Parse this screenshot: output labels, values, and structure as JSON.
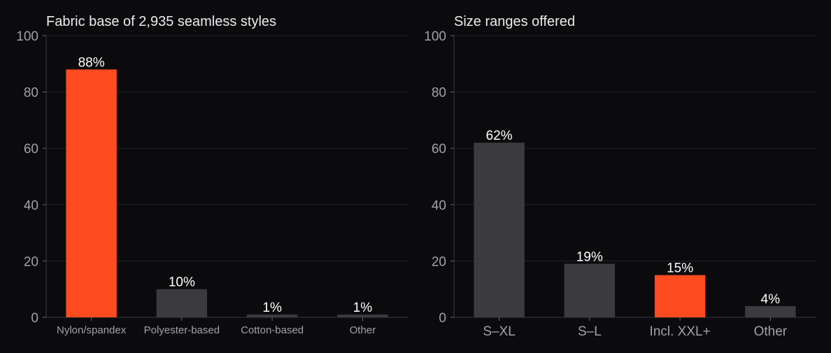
{
  "colors": {
    "background": "#0b0b0d",
    "highlight": "#ff4b1f",
    "muted": "#3b3b3e"
  },
  "chart_data": [
    {
      "type": "bar",
      "title": "Fabric base of 2,935 seamless styles",
      "xlabel": "",
      "ylabel": "",
      "ylim": [
        0,
        100
      ],
      "yticks": [
        0,
        20,
        40,
        60,
        80,
        100
      ],
      "categories": [
        "Nylon/spandex",
        "Polyester-based",
        "Cotton-based",
        "Other"
      ],
      "values": [
        88,
        10,
        1,
        1
      ],
      "data_labels": [
        "88%",
        "10%",
        "1%",
        "1%"
      ],
      "highlight": [
        "Nylon/spandex"
      ],
      "grid": true,
      "legend": "none"
    },
    {
      "type": "bar",
      "title": "Size ranges offered",
      "xlabel": "",
      "ylabel": "",
      "ylim": [
        0,
        100
      ],
      "yticks": [
        0,
        20,
        40,
        60,
        80,
        100
      ],
      "categories": [
        "S–XL",
        "S–L",
        "Incl. XXL+",
        "Other"
      ],
      "values": [
        62,
        19,
        15,
        4
      ],
      "data_labels": [
        "62%",
        "19%",
        "15%",
        "4%"
      ],
      "highlight": [
        "Incl. XXL+"
      ],
      "grid": true,
      "legend": "none"
    }
  ]
}
